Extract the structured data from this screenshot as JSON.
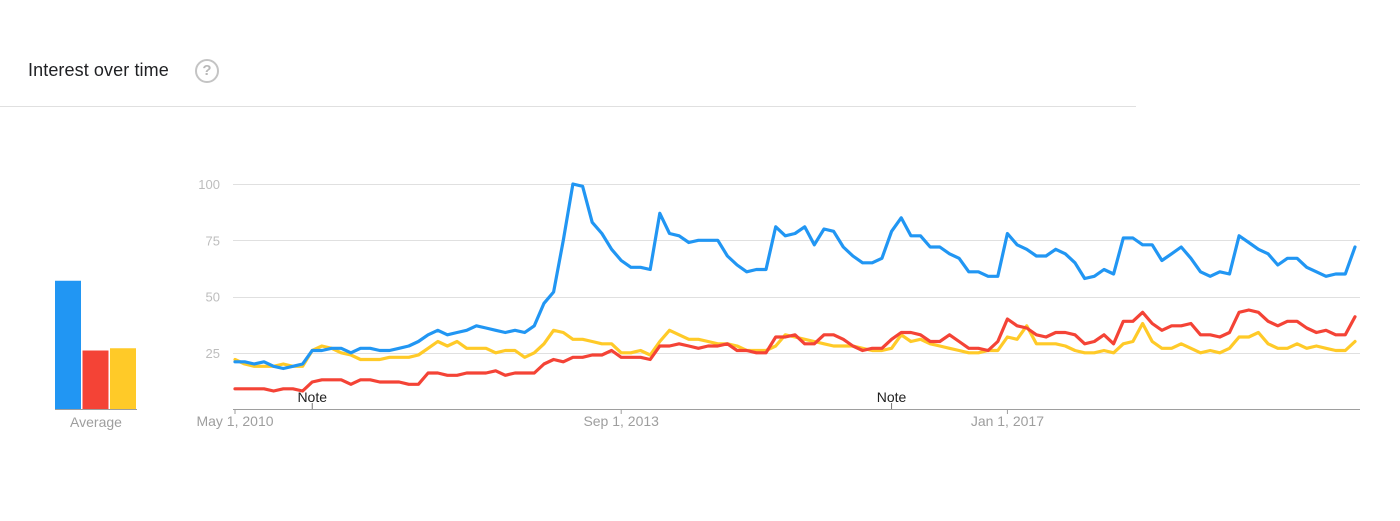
{
  "header": {
    "title": "Interest over time",
    "help_icon": "question-circle-icon"
  },
  "colors": {
    "blue": "#2196f3",
    "red": "#f44336",
    "yellow": "#ffca28",
    "grid": "#e0e0e0",
    "axis": "#9e9e9e",
    "tick_label": "#bdbdbd",
    "x_label": "#9e9e9e"
  },
  "average": {
    "label": "Average"
  },
  "notes": [
    "Note",
    "Note"
  ],
  "chart_data": [
    {
      "type": "bar",
      "categories": [
        "Average"
      ],
      "series": [
        {
          "color": "#2196f3",
          "values": [
            57
          ]
        },
        {
          "color": "#f44336",
          "values": [
            26
          ]
        },
        {
          "color": "#ffca28",
          "values": [
            27
          ]
        }
      ],
      "ylim": [
        0,
        100
      ],
      "grid": false
    },
    {
      "type": "line",
      "x_start": "2010-05",
      "x_step": "1 month",
      "ylim": [
        0,
        100
      ],
      "yticks": [
        25,
        50,
        75,
        100
      ],
      "ytick_labels": [
        "25",
        "50",
        "75",
        "100"
      ],
      "xtick_labels": [
        {
          "date": "2010-05-01",
          "label": "May 1, 2010"
        },
        {
          "date": "2013-09-01",
          "label": "Sep 1, 2013"
        },
        {
          "date": "2017-01-01",
          "label": "Jan 1, 2017"
        }
      ],
      "notes": [
        {
          "date": "2011-01-01",
          "label": "Note"
        },
        {
          "date": "2016-01-01",
          "label": "Note"
        }
      ],
      "grid": true,
      "series": [
        {
          "color": "#2196f3",
          "values": [
            21,
            21,
            20,
            21,
            19,
            18,
            19,
            20,
            26,
            26,
            27,
            27,
            25,
            27,
            27,
            26,
            26,
            27,
            28,
            30,
            33,
            35,
            33,
            34,
            35,
            37,
            36,
            35,
            34,
            35,
            34,
            37,
            47,
            52,
            75,
            100,
            99,
            83,
            78,
            71,
            66,
            63,
            63,
            62,
            87,
            78,
            77,
            74,
            75,
            75,
            75,
            68,
            64,
            61,
            62,
            62,
            81,
            77,
            78,
            81,
            73,
            80,
            79,
            72,
            68,
            65,
            65,
            67,
            79,
            85,
            77,
            77,
            72,
            72,
            69,
            67,
            61,
            61,
            59,
            59,
            78,
            73,
            71,
            68,
            68,
            71,
            69,
            65,
            58,
            59,
            62,
            60,
            76,
            76,
            73,
            73,
            66,
            69,
            72,
            67,
            61,
            59,
            61,
            60,
            77,
            74,
            71,
            69,
            64,
            67,
            67,
            63,
            61,
            59,
            60,
            60,
            72
          ]
        },
        {
          "color": "#f44336",
          "values": [
            9,
            9,
            9,
            9,
            8,
            9,
            9,
            8,
            12,
            13,
            13,
            13,
            11,
            13,
            13,
            12,
            12,
            12,
            11,
            11,
            16,
            16,
            15,
            15,
            16,
            16,
            16,
            17,
            15,
            16,
            16,
            16,
            20,
            22,
            21,
            23,
            23,
            24,
            24,
            26,
            23,
            23,
            23,
            22,
            28,
            28,
            29,
            28,
            27,
            28,
            28,
            29,
            26,
            26,
            25,
            25,
            32,
            32,
            33,
            29,
            29,
            33,
            33,
            31,
            28,
            26,
            27,
            27,
            31,
            34,
            34,
            33,
            30,
            30,
            33,
            30,
            27,
            27,
            26,
            30,
            40,
            37,
            36,
            33,
            32,
            34,
            34,
            33,
            29,
            30,
            33,
            29,
            39,
            39,
            43,
            38,
            35,
            37,
            37,
            38,
            33,
            33,
            32,
            34,
            43,
            44,
            43,
            39,
            37,
            39,
            39,
            36,
            34,
            35,
            33,
            33,
            41
          ]
        },
        {
          "color": "#ffca28",
          "values": [
            22,
            20,
            19,
            19,
            19,
            20,
            19,
            19,
            26,
            28,
            27,
            25,
            24,
            22,
            22,
            22,
            23,
            23,
            23,
            24,
            27,
            30,
            28,
            30,
            27,
            27,
            27,
            25,
            26,
            26,
            23,
            25,
            29,
            35,
            34,
            31,
            31,
            30,
            29,
            29,
            25,
            25,
            26,
            24,
            30,
            35,
            33,
            31,
            31,
            30,
            29,
            29,
            28,
            26,
            26,
            26,
            28,
            33,
            32,
            31,
            30,
            29,
            28,
            28,
            28,
            27,
            26,
            26,
            27,
            33,
            30,
            31,
            29,
            28,
            27,
            26,
            25,
            25,
            26,
            26,
            32,
            31,
            37,
            29,
            29,
            29,
            28,
            26,
            25,
            25,
            26,
            25,
            29,
            30,
            38,
            30,
            27,
            27,
            29,
            27,
            25,
            26,
            25,
            27,
            32,
            32,
            34,
            29,
            27,
            27,
            29,
            27,
            28,
            27,
            26,
            26,
            30
          ]
        }
      ]
    }
  ]
}
